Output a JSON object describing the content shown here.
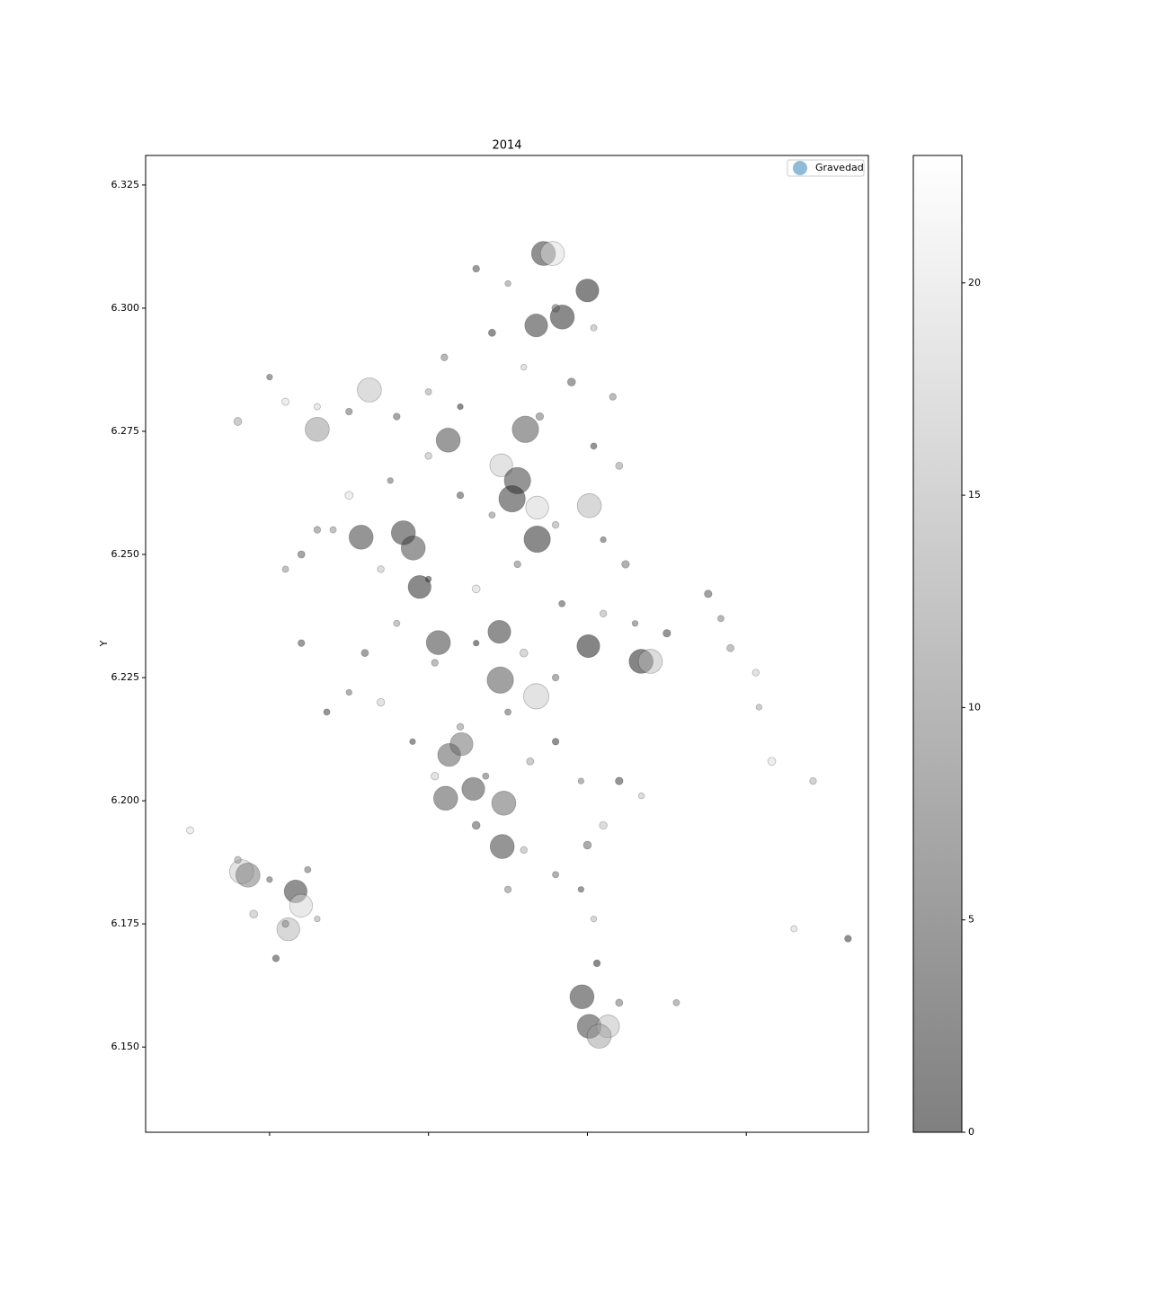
{
  "chart_data": {
    "type": "scatter",
    "title": "2014",
    "y_label": "Y",
    "xlim": [
      -75.689,
      -75.4616
    ],
    "xticks": [
      -75.65,
      -75.6,
      -75.55,
      -75.5
    ],
    "ylim": [
      6.1327,
      6.331
    ],
    "yticks": [
      {
        "value": 6.15,
        "label": "6.150"
      },
      6.175,
      {
        "value": 6.2,
        "label": "6.200"
      },
      6.225,
      {
        "value": 6.25,
        "label": "6.250"
      },
      6.275,
      {
        "value": 6.3,
        "label": "6.300"
      },
      6.325
    ],
    "colormap": "gray",
    "alpha": 0.5,
    "clim": [
      0,
      23
    ],
    "cticks": [
      0,
      5,
      10,
      15,
      20
    ],
    "legend": "upper right",
    "series": [
      {
        "name": "Gravedad",
        "color": "#1f77b4",
        "x": [
          -75.5638,
          -75.561,
          -75.55,
          -75.5579,
          -75.5661,
          -75.6186,
          -75.635,
          -75.5938,
          -75.5771,
          -75.572,
          -75.5695,
          -75.5737,
          -75.5494,
          -75.5658,
          -75.6212,
          -75.6079,
          -75.6048,
          -75.5658,
          -75.6028,
          -75.5777,
          -75.5969,
          -75.5497,
          -75.5331,
          -75.5302,
          -75.5774,
          -75.5661,
          -75.5935,
          -75.5896,
          -75.5946,
          -75.5859,
          -75.5763,
          -75.5768,
          -75.6588,
          -75.6568,
          -75.6418,
          -75.6401,
          -75.6441,
          -75.5517,
          -75.5494,
          -75.5435,
          -75.5463,
          -75.585,
          -75.575,
          -75.56,
          -75.548,
          -75.58,
          -75.595,
          -75.57,
          -75.555,
          -75.542,
          -75.6,
          -75.61,
          -75.59,
          -75.565,
          -75.548,
          -75.54,
          -75.6,
          -75.612,
          -75.625,
          -75.59,
          -75.58,
          -75.56,
          -75.545,
          -75.538,
          -75.63,
          -75.64,
          -75.615,
          -75.6,
          -75.585,
          -75.572,
          -75.558,
          -75.545,
          -75.535,
          -75.525,
          -75.61,
          -75.62,
          -75.598,
          -75.585,
          -75.57,
          -75.56,
          -75.575,
          -75.59,
          -75.605,
          -75.598,
          -75.582,
          -75.568,
          -75.56,
          -75.552,
          -75.585,
          -75.57,
          -75.56,
          -75.575,
          -75.552,
          -75.545,
          -75.635,
          -75.645,
          -75.625,
          -75.65,
          -75.66,
          -75.635,
          -75.645,
          -75.64,
          -75.625,
          -75.615,
          -75.632,
          -75.675,
          -75.66,
          -75.65,
          -75.655,
          -75.645,
          -75.638,
          -75.648,
          -75.635,
          -75.512,
          -75.508,
          -75.505,
          -75.497,
          -75.496,
          -75.492,
          -75.479,
          -75.485,
          -75.468,
          -75.533,
          -75.54,
          -75.522,
          -75.54,
          -75.547,
          -75.548,
          -75.55
        ],
        "values": [
          6.3111,
          6.3111,
          6.3036,
          6.2982,
          6.2965,
          6.2834,
          6.2754,
          6.2732,
          6.2681,
          6.265,
          6.2754,
          6.2613,
          6.2599,
          6.2595,
          6.2535,
          6.2544,
          6.2513,
          6.2531,
          6.2434,
          6.2343,
          6.2321,
          6.2314,
          6.2283,
          6.2283,
          6.2245,
          6.2212,
          6.2093,
          6.2115,
          6.2005,
          6.2024,
          6.1995,
          6.1907,
          6.1856,
          6.1849,
          6.1816,
          6.1787,
          6.1739,
          6.1602,
          6.1542,
          6.1542,
          6.1522,
          6.308,
          6.305,
          6.3,
          6.296,
          6.295,
          6.29,
          6.288,
          6.285,
          6.282,
          6.283,
          6.278,
          6.28,
          6.278,
          6.272,
          6.268,
          6.27,
          6.265,
          6.262,
          6.262,
          6.258,
          6.256,
          6.253,
          6.248,
          6.255,
          6.25,
          6.247,
          6.245,
          6.243,
          6.248,
          6.24,
          6.238,
          6.236,
          6.234,
          6.236,
          6.23,
          6.228,
          6.232,
          6.23,
          6.225,
          6.218,
          6.215,
          6.212,
          6.205,
          6.205,
          6.208,
          6.212,
          6.204,
          6.195,
          6.19,
          6.185,
          6.182,
          6.182,
          6.195,
          6.28,
          6.281,
          6.279,
          6.286,
          6.277,
          6.255,
          6.247,
          6.232,
          6.222,
          6.22,
          6.218,
          6.194,
          6.188,
          6.184,
          6.177,
          6.175,
          6.186,
          6.168,
          6.176,
          6.242,
          6.237,
          6.231,
          6.226,
          6.219,
          6.208,
          6.204,
          6.174,
          6.172,
          6.201,
          6.204,
          6.159,
          6.159,
          6.167,
          6.176,
          6.191
        ],
        "sizes": [
          500,
          500,
          450,
          500,
          450,
          500,
          500,
          500,
          450,
          600,
          600,
          600,
          500,
          450,
          500,
          500,
          500,
          600,
          450,
          450,
          500,
          450,
          500,
          500,
          600,
          550,
          450,
          450,
          500,
          450,
          500,
          500,
          500,
          500,
          450,
          450,
          450,
          500,
          500,
          450,
          500,
          40,
          30,
          50,
          35,
          45,
          40,
          30,
          55,
          40,
          35,
          40,
          30,
          50,
          35,
          45,
          40,
          30,
          55,
          40,
          35,
          40,
          30,
          50,
          35,
          45,
          40,
          30,
          55,
          40,
          35,
          40,
          30,
          50,
          35,
          45,
          40,
          30,
          55,
          40,
          35,
          40,
          30,
          50,
          35,
          45,
          40,
          30,
          55,
          40,
          35,
          40,
          30,
          50,
          35,
          45,
          40,
          30,
          55,
          40,
          35,
          40,
          30,
          50,
          35,
          45,
          40,
          30,
          55,
          40,
          35,
          40,
          30,
          50,
          35,
          45,
          40,
          30,
          55,
          40,
          35,
          40,
          30,
          50,
          35,
          45,
          40,
          30,
          55
        ],
        "c": [
          3,
          20,
          1,
          2,
          3,
          17,
          13,
          5,
          18,
          4,
          6,
          3,
          16,
          19,
          4,
          3,
          5,
          2,
          2,
          3,
          4,
          1,
          1,
          17,
          6,
          18,
          7,
          9,
          6,
          5,
          8,
          4,
          18,
          10,
          3,
          19,
          16,
          3,
          4,
          17,
          14,
          5,
          12,
          8,
          15,
          3,
          10,
          18,
          6,
          11,
          14,
          7,
          2,
          9,
          4,
          13,
          16,
          8,
          20,
          5,
          11,
          14,
          6,
          9,
          12,
          7,
          17,
          3,
          19,
          10,
          5,
          15,
          8,
          4,
          13,
          6,
          11,
          2,
          16,
          9,
          7,
          12,
          4,
          18,
          8,
          14,
          3,
          10,
          6,
          15,
          9,
          11,
          5,
          17,
          19,
          20,
          8,
          6,
          14,
          10,
          12,
          5,
          9,
          18,
          4,
          20,
          13,
          7,
          16,
          11,
          8,
          4,
          14,
          6,
          10,
          12,
          18,
          14,
          20,
          15,
          19,
          3,
          17,
          4,
          11,
          9,
          2,
          16,
          8
        ]
      }
    ]
  }
}
